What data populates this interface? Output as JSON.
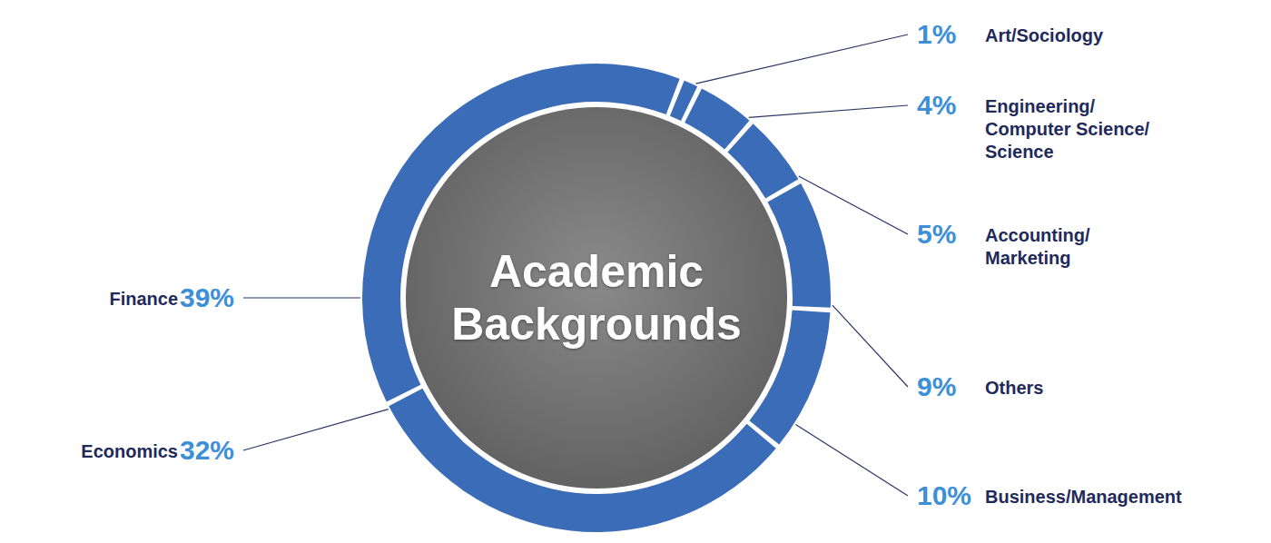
{
  "chart_data": {
    "type": "pie",
    "title": "Academic Backgrounds",
    "categories": [
      "Art/Sociology",
      "Engineering/\nComputer Science/\nScience",
      "Accounting/\nMarketing",
      "Others",
      "Business/Management",
      "Economics",
      "Finance"
    ],
    "values": [
      1,
      4,
      5,
      9,
      10,
      32,
      39
    ],
    "value_labels": [
      "1%",
      "4%",
      "5%",
      "9%",
      "10%",
      "32%",
      "39%"
    ],
    "color": "#3a6cb7",
    "data_labels": true
  }
}
